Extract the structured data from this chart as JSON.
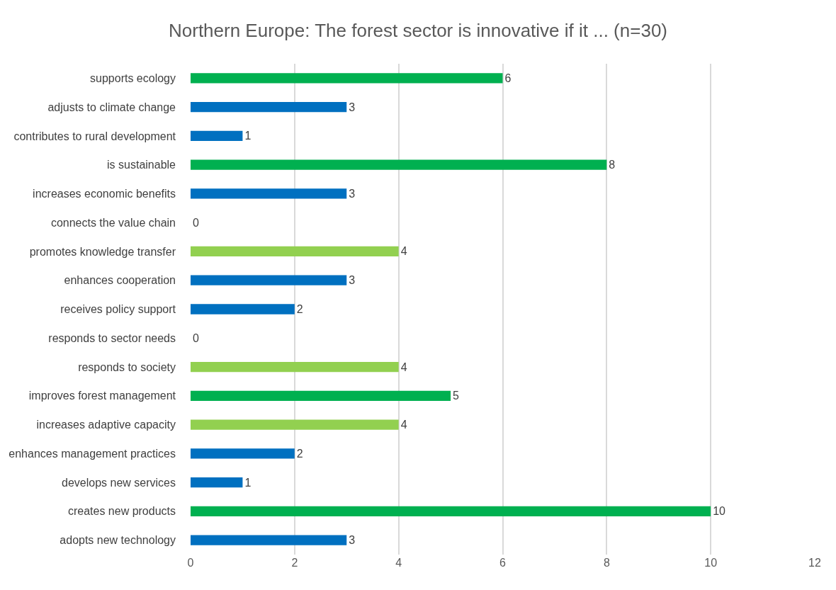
{
  "chart_data": {
    "type": "bar",
    "orientation": "horizontal",
    "title": "Northern Europe: The forest sector is innovative if it ... (n=30)",
    "categories": [
      "supports ecology",
      "adjusts to climate change",
      "contributes to rural development",
      "is sustainable",
      "increases economic benefits",
      "connects the value chain",
      "promotes knowledge transfer",
      "enhances cooperation",
      "receives policy support",
      "responds to sector needs",
      "responds to society",
      "improves forest management",
      "increases adaptive capacity",
      "enhances management practices",
      "develops new services",
      "creates new products",
      "adopts new technology"
    ],
    "values": [
      6,
      3,
      1,
      8,
      3,
      0,
      4,
      3,
      2,
      0,
      4,
      5,
      4,
      2,
      1,
      10,
      3
    ],
    "colors": [
      "#00b050",
      "#0070c0",
      "#0070c0",
      "#00b050",
      "#0070c0",
      "#0070c0",
      "#92d050",
      "#0070c0",
      "#0070c0",
      "#0070c0",
      "#92d050",
      "#00b050",
      "#92d050",
      "#0070c0",
      "#0070c0",
      "#00b050",
      "#0070c0"
    ],
    "xlim": [
      0,
      12
    ],
    "xticks": [
      0,
      2,
      4,
      6,
      8,
      10,
      12
    ],
    "grid": "x",
    "data_labels": true
  }
}
